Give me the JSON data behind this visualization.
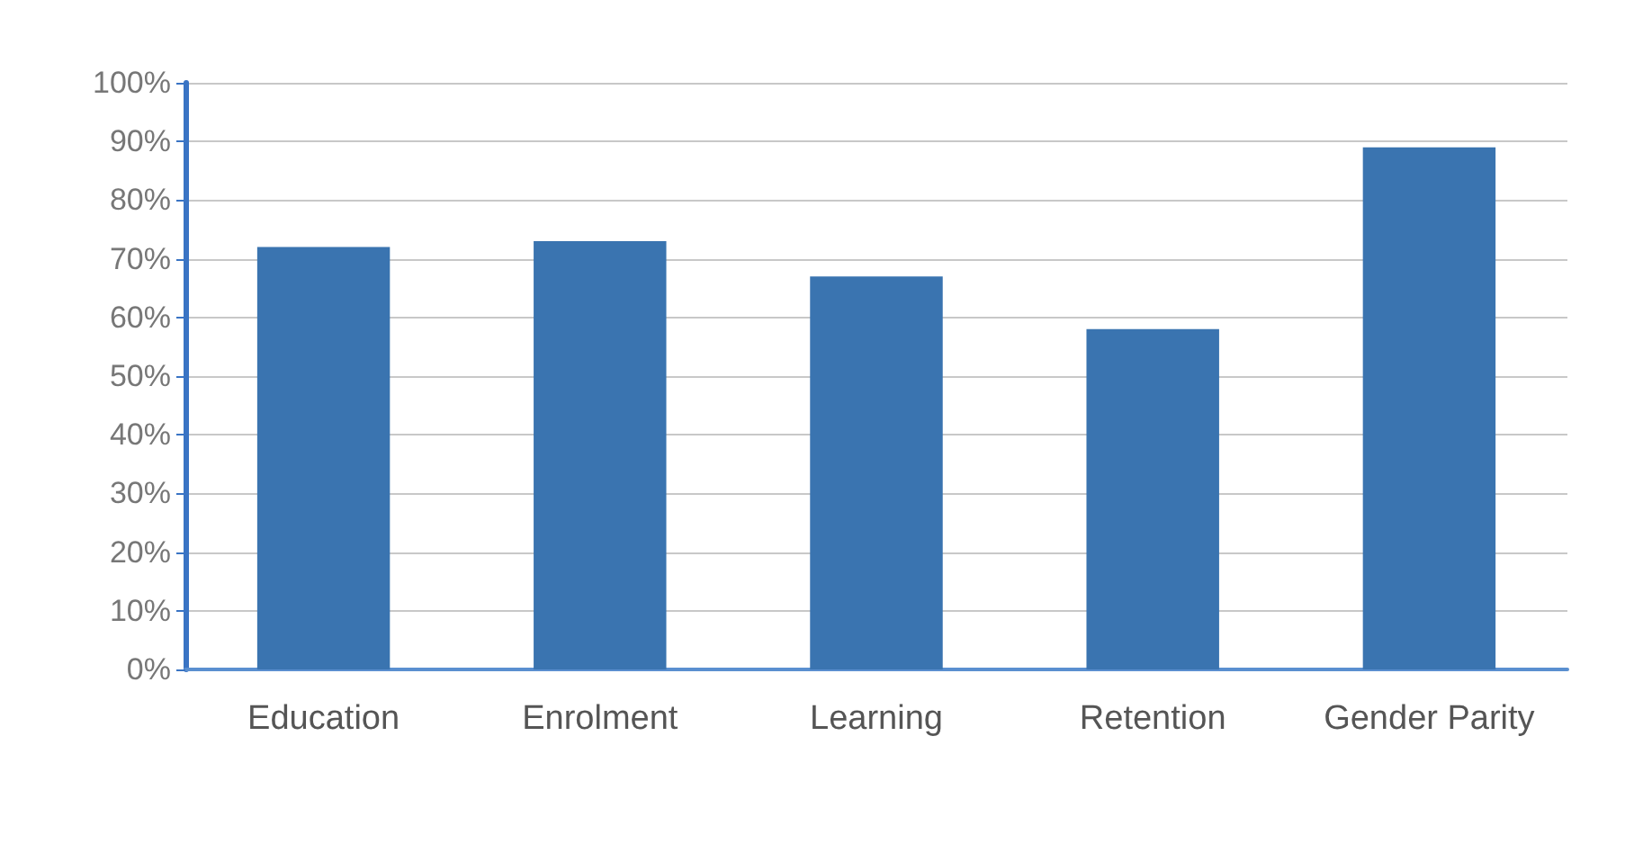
{
  "chart_data": {
    "type": "bar",
    "categories": [
      "Education",
      "Enrolment",
      "Learning",
      "Retention",
      "Gender Parity"
    ],
    "values": [
      72,
      73,
      67,
      58,
      89
    ],
    "color": "#3a74b0",
    "ylim": [
      0,
      100
    ],
    "yticks": [
      {
        "value": 0,
        "label": "0%"
      },
      {
        "value": 10,
        "label": "10%"
      },
      {
        "value": 20,
        "label": "20%"
      },
      {
        "value": 30,
        "label": "30%"
      },
      {
        "value": 40,
        "label": "40%"
      },
      {
        "value": 50,
        "label": "50%"
      },
      {
        "value": 60,
        "label": "60%"
      },
      {
        "value": 70,
        "label": "70%"
      },
      {
        "value": 80,
        "label": "80%"
      },
      {
        "value": 90,
        "label": "90%"
      },
      {
        "value": 100,
        "label": "100%"
      }
    ],
    "grid": "y"
  }
}
